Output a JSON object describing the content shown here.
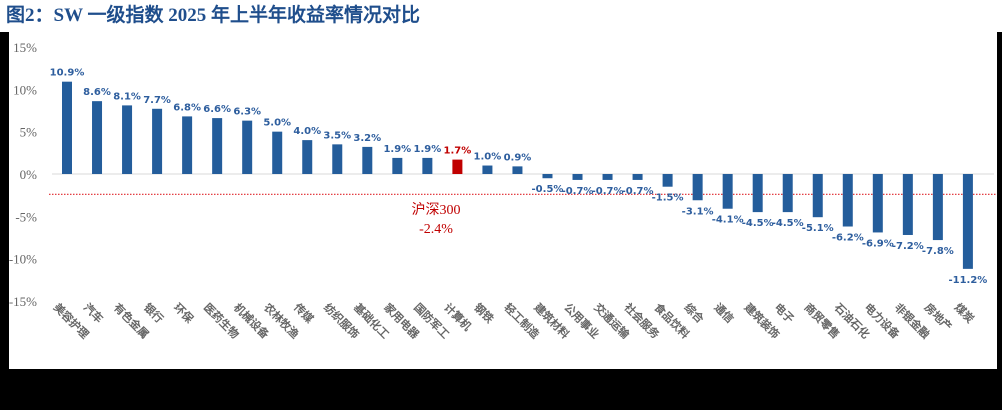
{
  "title": "图2：SW 一级指数 2025 年上半年收益率情况对比",
  "colors": {
    "bar": "#245d9b",
    "highlight_bar": "#c00000",
    "label": "#2e5e9e",
    "highlight_label": "#c00000",
    "benchmark_line": "#e0262b",
    "title": "#1f4e8c"
  },
  "benchmark": {
    "name": "沪深300",
    "value_label": "-2.4%",
    "value": -2.4
  },
  "chart_data": {
    "type": "bar",
    "title": "SW 一级指数 2025 年上半年收益率情况对比",
    "xlabel": "",
    "ylabel": "",
    "ylim": [
      -15,
      15
    ],
    "yticks": [
      "15%",
      "10%",
      "5%",
      "0%",
      "-5%",
      "-10%",
      "-15%"
    ],
    "grid": false,
    "legend": null,
    "categories": [
      "美容护理",
      "汽车",
      "有色金属",
      "银行",
      "环保",
      "医药生物",
      "机械设备",
      "农林牧渔",
      "传媒",
      "纺织服饰",
      "基础化工",
      "家用电器",
      "国防军工",
      "计算机",
      "钢铁",
      "轻工制造",
      "建筑材料",
      "公用事业",
      "交通运输",
      "社会服务",
      "食品饮料",
      "综合",
      "通信",
      "建筑装饰",
      "电子",
      "商贸零售",
      "石油石化",
      "电力设备",
      "非银金融",
      "房地产",
      "煤炭"
    ],
    "values": [
      10.9,
      8.6,
      8.1,
      7.7,
      6.8,
      6.6,
      6.3,
      5.0,
      4.0,
      3.5,
      3.2,
      1.9,
      1.9,
      1.7,
      1.0,
      0.9,
      -0.5,
      -0.7,
      -0.7,
      -0.7,
      -1.5,
      -3.1,
      -4.1,
      -4.5,
      -4.5,
      -5.1,
      -6.2,
      -6.9,
      -7.2,
      -7.8,
      -11.2
    ],
    "labels": [
      "10.9%",
      "8.6%",
      "8.1%",
      "7.7%",
      "6.8%",
      "6.6%",
      "6.3%",
      "5.0%",
      "4.0%",
      "3.5%",
      "3.2%",
      "1.9%",
      "1.9%",
      "1.7%",
      "1.0%",
      "0.9%",
      "-0.5%",
      "-0.7%",
      "-0.7%",
      "-0.7%",
      "-1.5%",
      "-3.1%",
      "-4.1%",
      "-4.5%",
      "-4.5%",
      "-5.1%",
      "-6.2%",
      "-6.9%",
      "-7.2%",
      "-7.8%",
      "-11.2%"
    ],
    "highlight_index": 13,
    "reference_line": {
      "name": "沪深300",
      "value": -2.4,
      "style": "dotted",
      "color": "#e0262b"
    }
  }
}
